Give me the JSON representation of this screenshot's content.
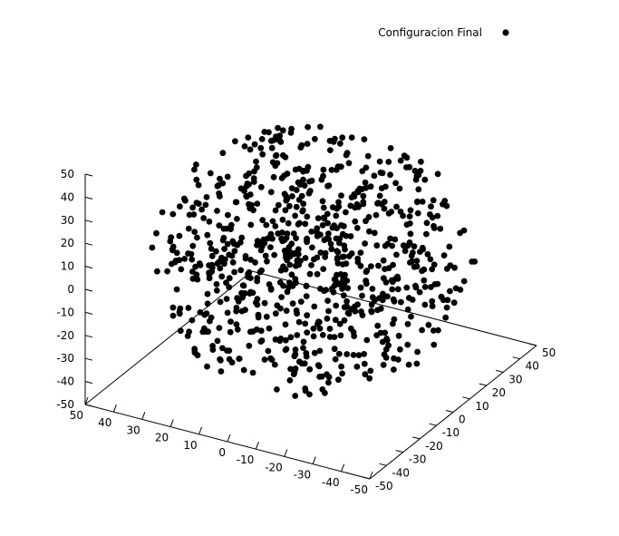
{
  "chart_data": {
    "type": "scatter",
    "projection": "3d",
    "legend": {
      "position": "top-right",
      "entries": [
        {
          "label": "Configuracion Final",
          "marker": "filled-circle",
          "color": "#000000"
        }
      ]
    },
    "axes": {
      "z": {
        "range": [
          -50,
          50
        ],
        "ticks": [
          "50",
          "40",
          "30",
          "20",
          "10",
          "0",
          "-10",
          "-20",
          "-30",
          "-40",
          "-50"
        ]
      },
      "x": {
        "range": [
          -50,
          50
        ],
        "ticks": [
          "50",
          "40",
          "30",
          "20",
          "10",
          "0",
          "-10",
          "-20",
          "-30",
          "-40",
          "-50"
        ]
      },
      "y": {
        "range": [
          -50,
          50
        ],
        "ticks": [
          "-50",
          "-40",
          "-30",
          "-20",
          "-10",
          "0",
          "10",
          "20",
          "30",
          "40",
          "50"
        ]
      }
    },
    "grid": false,
    "series": [
      {
        "name": "Configuracion Final",
        "shape": "solid ball of points",
        "radius": 50,
        "point_count": 800,
        "sample_seed": 12345
      }
    ]
  }
}
